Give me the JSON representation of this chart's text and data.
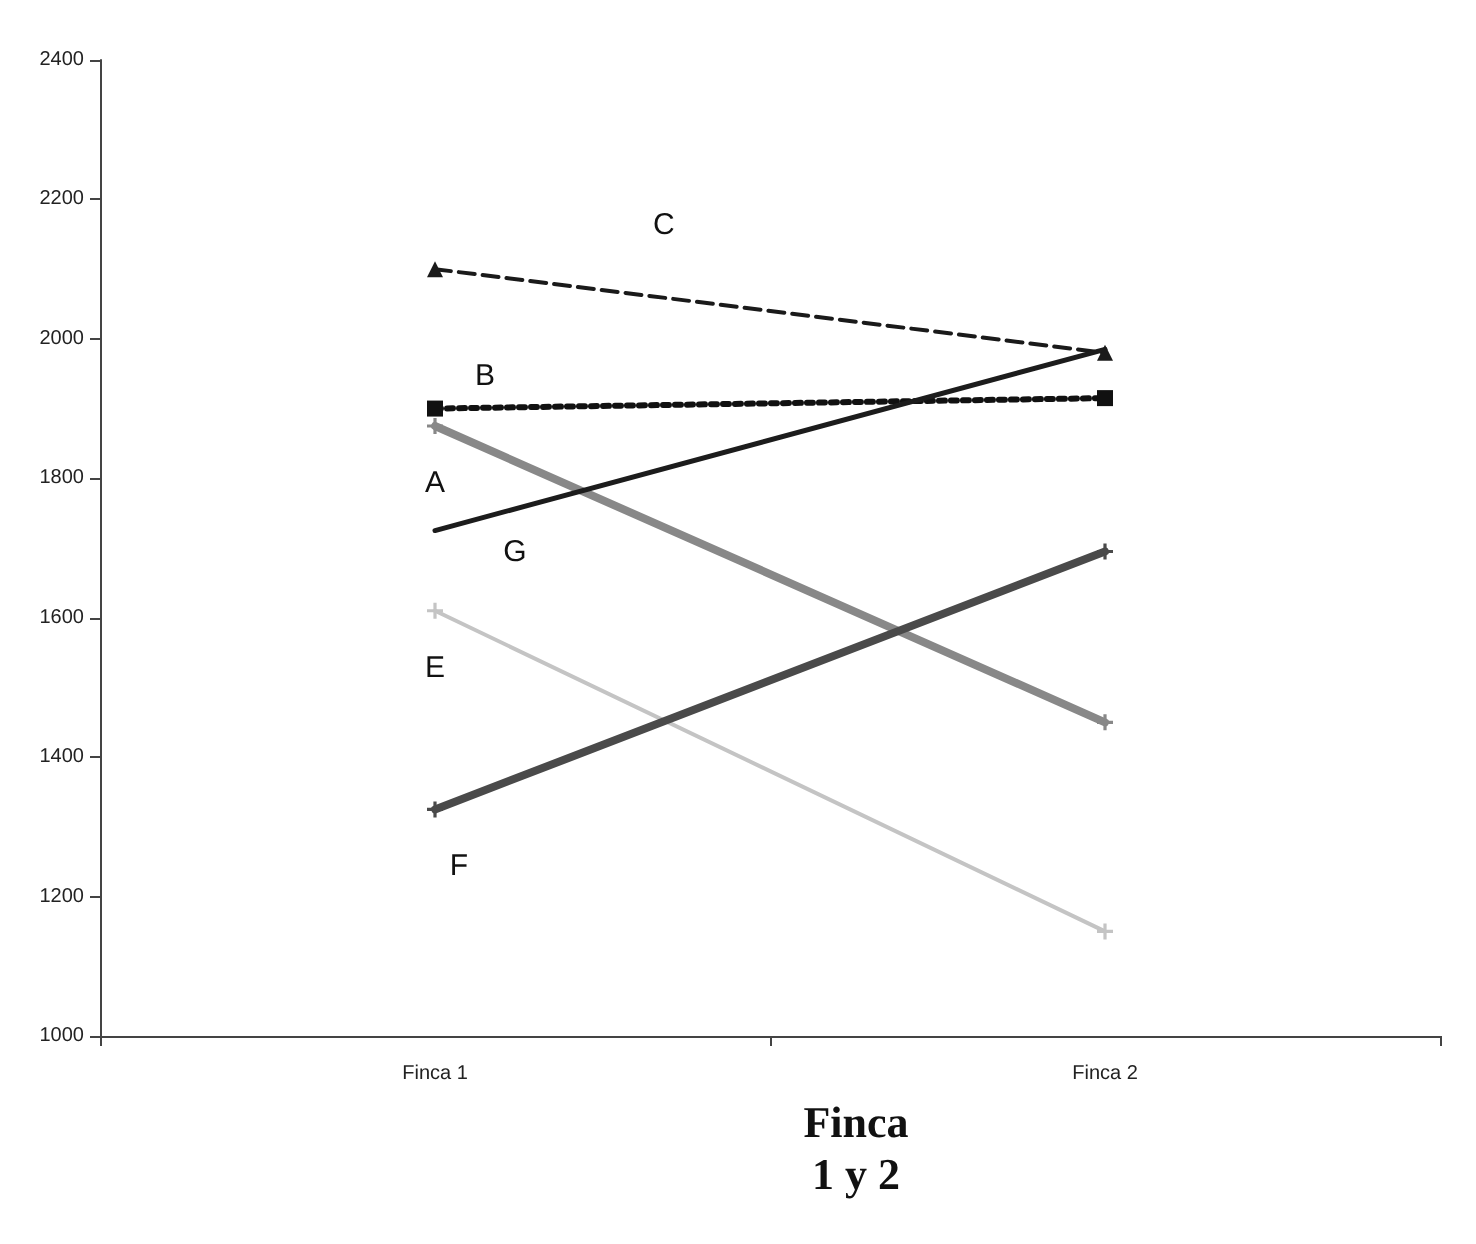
{
  "chart_data": {
    "type": "line",
    "xlabel": "Finca\n1 y 2",
    "categories": [
      "Finca 1",
      "Finca 2"
    ],
    "ylim": [
      1000,
      2400
    ],
    "yticks": [
      1000,
      1200,
      1400,
      1600,
      1800,
      2000,
      2200,
      2400
    ],
    "grid": false,
    "legend": false,
    "series": [
      {
        "name": "C",
        "color": "#1a1a1a",
        "values": [
          2100,
          1980
        ],
        "line_style": "dashed",
        "marker": "triangle"
      },
      {
        "name": "B",
        "color": "#111111",
        "values": [
          1900,
          1915
        ],
        "line_style": "dotted",
        "marker": "square"
      },
      {
        "name": "A",
        "color": "#888888",
        "values": [
          1875,
          1450
        ],
        "line_style": "solid",
        "marker": "cross"
      },
      {
        "name": "G",
        "color": "#1c1c1c",
        "values": [
          1725,
          1985
        ],
        "line_style": "solid",
        "marker": "none"
      },
      {
        "name": "E",
        "color": "#c4c4c4",
        "values": [
          1610,
          1150
        ],
        "line_style": "solid",
        "marker": "cross"
      },
      {
        "name": "F",
        "color": "#4a4a4a",
        "values": [
          1325,
          1695
        ],
        "line_style": "solid",
        "marker": "cross"
      }
    ]
  }
}
